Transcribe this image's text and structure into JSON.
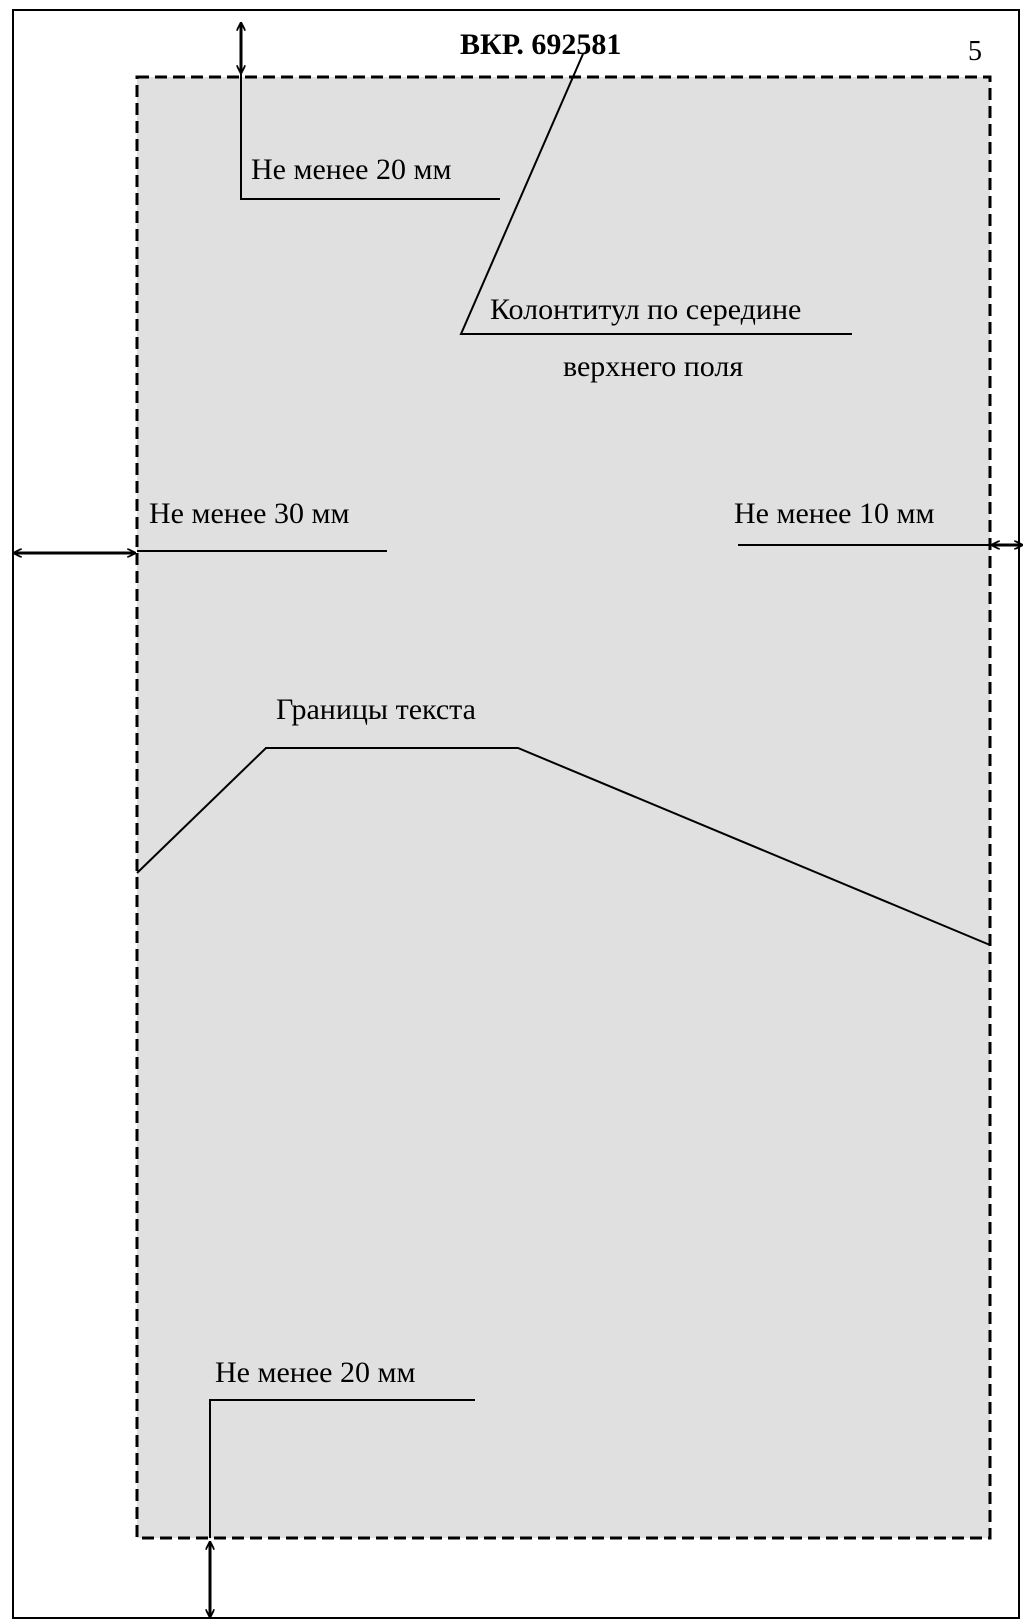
{
  "header": {
    "doc_code": "ВКР. 692581",
    "page_number": "5"
  },
  "callouts": {
    "top_margin": "Не менее 20 мм",
    "header_note_line1": "Колонтитул по середине",
    "header_note_line2": "верхнего поля",
    "left_margin": "Не менее 30 мм",
    "right_margin": "Не менее 10 мм",
    "text_bounds": "Границы текста",
    "bottom_margin": "Не менее 20 мм"
  },
  "colors": {
    "text_area_fill": "#e0e0e0",
    "line": "#000000",
    "page": "#ffffff"
  }
}
